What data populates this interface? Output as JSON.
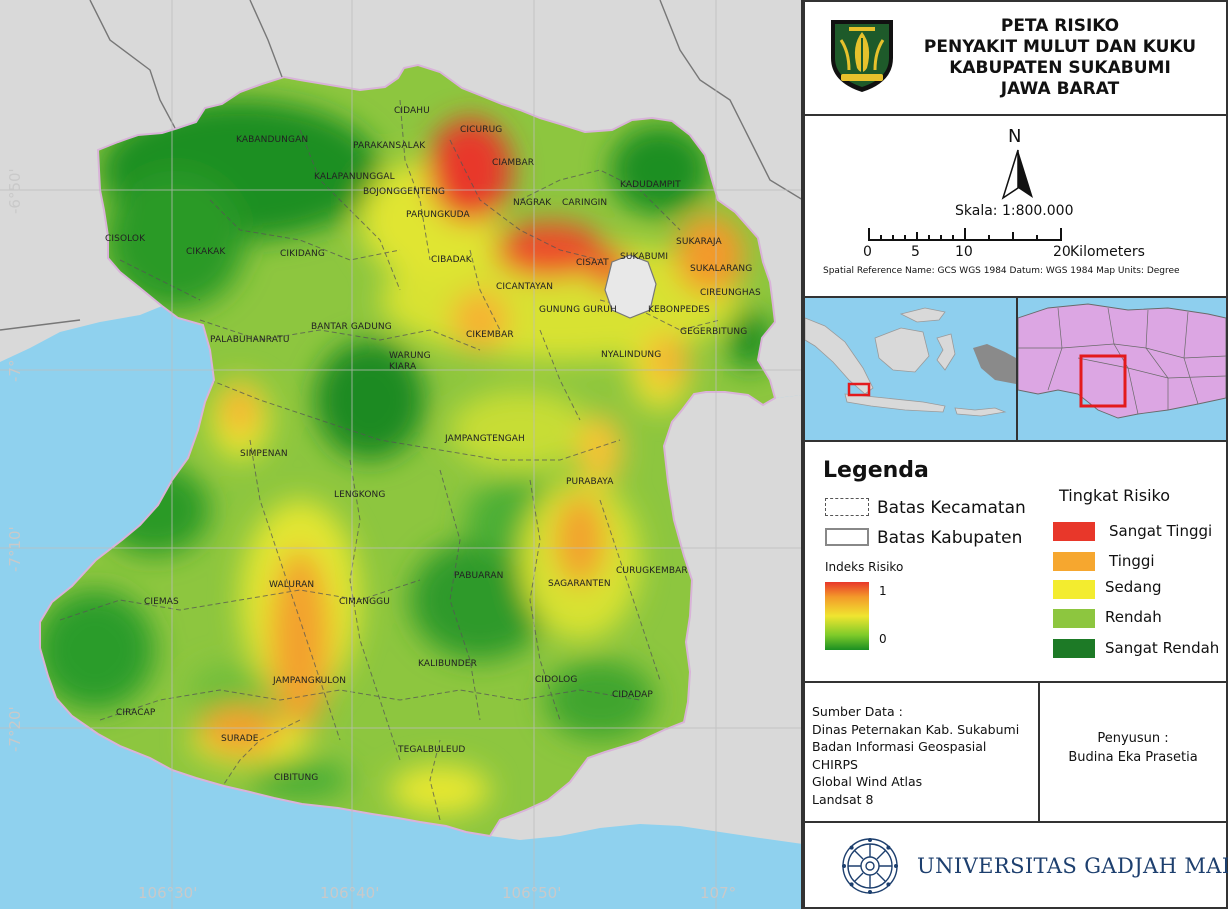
{
  "title": {
    "lines": [
      "PETA RISIKO",
      "PENYAKIT MULUT DAN KUKU",
      "KABUPATEN SUKABUMI",
      "JAWA BARAT"
    ],
    "emblem_icon": "kabupaten-sukabumi-emblem-icon",
    "emblem_colors": {
      "shield": "#1e5a2a",
      "gold": "#e6c12c",
      "border": "#111111"
    }
  },
  "scale": {
    "north_label": "N",
    "north_icon": "north-arrow-icon",
    "scale_text": "Skala: 1:800.000",
    "ticks": [
      "0",
      "5",
      "10",
      "20"
    ],
    "unit": "Kilometers",
    "spatial_reference": "Spatial Reference Name: GCS WGS 1984 Datum: WGS 1984 Map Units: Degree"
  },
  "coordinates": {
    "lat": [
      "-6°50'",
      "-7°",
      "-7°10'",
      "-7°20'"
    ],
    "lon": [
      "106°30'",
      "106°40'",
      "106°50'",
      "107°"
    ]
  },
  "places": [
    "KABANDUNGAN",
    "CIDAHU",
    "CICURUG",
    "PARAKANSALAK",
    "CIAMBAR",
    "KALAPANUNGGAL",
    "BOJONGGENTENG",
    "KADUDAMPIT",
    "NAGRAK",
    "CARINGIN",
    "PARUNGKUDA",
    "CISOLOK",
    "CIKAKAK",
    "CIKIDANG",
    "SUKARAJA",
    "CIBADAK",
    "CISAAT",
    "SUKABUMI",
    "SUKALARANG",
    "CICANTAYAN",
    "CIREUNGHAS",
    "GUNUNG GURUH",
    "KEBONPEDES",
    "BANTAR GADUNG",
    "CIKEMBAR",
    "GEGERBITUNG",
    "PALABUHANRATU",
    "WARUNG KIARA",
    "NYALINDUNG",
    "JAMPANGTENGAH",
    "SIMPENAN",
    "PURABAYA",
    "LENGKONG",
    "CURUGKEMBAR",
    "WALURAN",
    "PABUARAN",
    "SAGARANTEN",
    "CIEMAS",
    "CIMANGGU",
    "KALIBUNDER",
    "CIDOLOG",
    "JAMPANGKULON",
    "CIDADAP",
    "CIRACAP",
    "SURADE",
    "TEGALBULEUD",
    "CIBITUNG"
  ],
  "map_colors": {
    "sea": "#8fd1ee",
    "land_outside": "#d9d9d9",
    "very_high": "#e8372a",
    "high": "#f39a2a",
    "medium": "#f0e530",
    "low": "#8dc63f",
    "very_low": "#1a8f22"
  },
  "legend": {
    "title": "Legenda",
    "boundary_items": [
      "Batas Kecamatan",
      "Batas Kabupaten"
    ],
    "index_title": "Indeks Risiko",
    "index_high": "1",
    "index_low": "0",
    "risk_title": "Tingkat Risiko",
    "risk_items": [
      {
        "label": "Sangat Tinggi",
        "color": "#e8372a"
      },
      {
        "label": "Tinggi",
        "color": "#f6a72f"
      },
      {
        "label": "Sedang",
        "color": "#f3ec2f"
      },
      {
        "label": "Rendah",
        "color": "#8dc63f"
      },
      {
        "label": "Sangat Rendah",
        "color": "#1d7a26"
      }
    ]
  },
  "source": {
    "lines": [
      "Sumber Data :",
      "Dinas Peternakan Kab. Sukabumi",
      "Badan Informasi Geospasial",
      "CHIRPS",
      "Global Wind Atlas",
      "Landsat 8"
    ]
  },
  "author": {
    "lines": [
      "Penyusun :",
      "Budina Eka Prasetia"
    ]
  },
  "university": {
    "name": "UNIVERSITAS GADJAH MADA",
    "logo_icon": "ugm-logo-icon",
    "color": "#1d3f6e"
  }
}
